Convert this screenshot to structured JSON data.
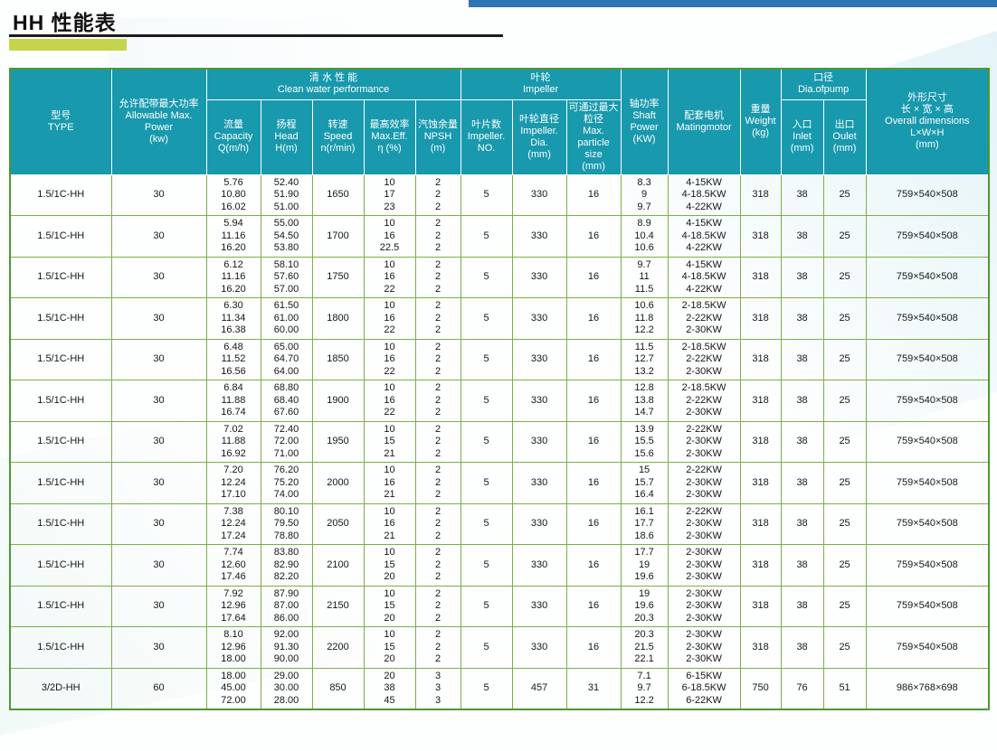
{
  "page": {
    "title": "HH 性能表"
  },
  "table": {
    "header": {
      "type": "型号\nTYPE",
      "power": "允许配带最大功率\nAllowable Max.\nPower\n(kw)",
      "clean_water": "清  水  性  能\nClean water performance",
      "capacity": "流量\nCapacity\nQ(m/h)",
      "head": "扬程\nHead\nH(m)",
      "speed": "转速\nSpeed\nn(r/min)",
      "max_eff": "最高效率\nMax.Eff.\nη (%)",
      "npsh": "汽蚀余量\nNPSH\n(m)",
      "impeller": "叶轮\nImpeller",
      "impeller_no": "叶片数\nImpeller.\nNO.",
      "impeller_dia": "叶轮直径\nImpeller.\nDia.\n(mm)",
      "particle": "可通过最大\n粒径\nMax.\nparticle\nsize\n(mm)",
      "shaft": "轴功率\nShaft\nPower\n(KW)",
      "motor": "配套电机\nMatingmotor",
      "weight": "重量\nWeight\n(kg)",
      "dia_group": "口径\nDia.ofpump",
      "inlet": "入口\nInlet\n(mm)",
      "outlet": "出口\nOulet\n(mm)",
      "dims": "外形尺寸\n长 × 宽 × 高\nOverall dimensions\nL×W×H\n(mm)"
    },
    "columns": [
      "type",
      "power",
      "capacity",
      "head",
      "speed",
      "eff",
      "npsh",
      "impeller_no",
      "impeller_dia",
      "particle",
      "shaft",
      "motor",
      "weight",
      "inlet",
      "outlet",
      "dims"
    ],
    "rows": [
      {
        "type": "1.5/1C-HH",
        "power": "30",
        "capacity": "5.76\n10.80\n16.02",
        "head": "52.40\n51.90\n51.00",
        "speed": "1650",
        "eff": "10\n17\n23",
        "npsh": "2\n2\n2",
        "impeller_no": "5",
        "impeller_dia": "330",
        "particle": "16",
        "shaft": "8.3\n9\n9.7",
        "motor": "4-15KW\n4-18.5KW\n4-22KW",
        "weight": "318",
        "inlet": "38",
        "outlet": "25",
        "dims": "759×540×508"
      },
      {
        "type": "1.5/1C-HH",
        "power": "30",
        "capacity": "5.94\n11.16\n16.20",
        "head": "55.00\n54.50\n53.80",
        "speed": "1700",
        "eff": "10\n16\n22.5",
        "npsh": "2\n2\n2",
        "impeller_no": "5",
        "impeller_dia": "330",
        "particle": "16",
        "shaft": "8.9\n10.4\n10.6",
        "motor": "4-15KW\n4-18.5KW\n4-22KW",
        "weight": "318",
        "inlet": "38",
        "outlet": "25",
        "dims": "759×540×508"
      },
      {
        "type": "1.5/1C-HH",
        "power": "30",
        "capacity": "6.12\n11.16\n16.20",
        "head": "58.10\n57.60\n57.00",
        "speed": "1750",
        "eff": "10\n16\n22",
        "npsh": "2\n2\n2",
        "impeller_no": "5",
        "impeller_dia": "330",
        "particle": "16",
        "shaft": "9.7\n11\n11.5",
        "motor": "4-15KW\n4-18.5KW\n4-22KW",
        "weight": "318",
        "inlet": "38",
        "outlet": "25",
        "dims": "759×540×508"
      },
      {
        "type": "1.5/1C-HH",
        "power": "30",
        "capacity": "6.30\n11.34\n16.38",
        "head": "61.50\n61.00\n60.00",
        "speed": "1800",
        "eff": "10\n16\n22",
        "npsh": "2\n2\n2",
        "impeller_no": "5",
        "impeller_dia": "330",
        "particle": "16",
        "shaft": "10.6\n11.8\n12.2",
        "motor": "2-18.5KW\n2-22KW\n2-30KW",
        "weight": "318",
        "inlet": "38",
        "outlet": "25",
        "dims": "759×540×508"
      },
      {
        "type": "1.5/1C-HH",
        "power": "30",
        "capacity": "6.48\n11.52\n16.56",
        "head": "65.00\n64.70\n64.00",
        "speed": "1850",
        "eff": "10\n16\n22",
        "npsh": "2\n2\n2",
        "impeller_no": "5",
        "impeller_dia": "330",
        "particle": "16",
        "shaft": "11.5\n12.7\n13.2",
        "motor": "2-18.5KW\n2-22KW\n2-30KW",
        "weight": "318",
        "inlet": "38",
        "outlet": "25",
        "dims": "759×540×508"
      },
      {
        "type": "1.5/1C-HH",
        "power": "30",
        "capacity": "6.84\n11.88\n16.74",
        "head": "68.80\n68.40\n67.60",
        "speed": "1900",
        "eff": "10\n16\n22",
        "npsh": "2\n2\n2",
        "impeller_no": "5",
        "impeller_dia": "330",
        "particle": "16",
        "shaft": "12.8\n13.8\n14.7",
        "motor": "2-18.5KW\n2-22KW\n2-30KW",
        "weight": "318",
        "inlet": "38",
        "outlet": "25",
        "dims": "759×540×508"
      },
      {
        "type": "1.5/1C-HH",
        "power": "30",
        "capacity": "7.02\n11.88\n16.92",
        "head": "72.40\n72.00\n71.00",
        "speed": "1950",
        "eff": "10\n15\n21",
        "npsh": "2\n2\n2",
        "impeller_no": "5",
        "impeller_dia": "330",
        "particle": "16",
        "shaft": "13.9\n15.5\n15.6",
        "motor": "2-22KW\n2-30KW\n2-30KW",
        "weight": "318",
        "inlet": "38",
        "outlet": "25",
        "dims": "759×540×508"
      },
      {
        "type": "1.5/1C-HH",
        "power": "30",
        "capacity": "7.20\n12.24\n17.10",
        "head": "76.20\n75.20\n74.00",
        "speed": "2000",
        "eff": "10\n16\n21",
        "npsh": "2\n2\n2",
        "impeller_no": "5",
        "impeller_dia": "330",
        "particle": "16",
        "shaft": "15\n15.7\n16.4",
        "motor": "2-22KW\n2-30KW\n2-30KW",
        "weight": "318",
        "inlet": "38",
        "outlet": "25",
        "dims": "759×540×508"
      },
      {
        "type": "1.5/1C-HH",
        "power": "30",
        "capacity": "7.38\n12.24\n17.24",
        "head": "80.10\n79.50\n78.80",
        "speed": "2050",
        "eff": "10\n16\n21",
        "npsh": "2\n2\n2",
        "impeller_no": "5",
        "impeller_dia": "330",
        "particle": "16",
        "shaft": "16.1\n17.7\n18.6",
        "motor": "2-22KW\n2-30KW\n2-30KW",
        "weight": "318",
        "inlet": "38",
        "outlet": "25",
        "dims": "759×540×508"
      },
      {
        "type": "1.5/1C-HH",
        "power": "30",
        "capacity": "7.74\n12.60\n17.46",
        "head": "83.80\n82.90\n82.20",
        "speed": "2100",
        "eff": "10\n15\n20",
        "npsh": "2\n2\n2",
        "impeller_no": "5",
        "impeller_dia": "330",
        "particle": "16",
        "shaft": "17.7\n19\n19.6",
        "motor": "2-30KW\n2-30KW\n2-30KW",
        "weight": "318",
        "inlet": "38",
        "outlet": "25",
        "dims": "759×540×508"
      },
      {
        "type": "1.5/1C-HH",
        "power": "30",
        "capacity": "7.92\n12.96\n17.64",
        "head": "87.90\n87.00\n86.00",
        "speed": "2150",
        "eff": "10\n15\n20",
        "npsh": "2\n2\n2",
        "impeller_no": "5",
        "impeller_dia": "330",
        "particle": "16",
        "shaft": "19\n19.6\n20.3",
        "motor": "2-30KW\n2-30KW\n2-30KW",
        "weight": "318",
        "inlet": "38",
        "outlet": "25",
        "dims": "759×540×508"
      },
      {
        "type": "1.5/1C-HH",
        "power": "30",
        "capacity": "8.10\n12.96\n18.00",
        "head": "92.00\n91.30\n90.00",
        "speed": "2200",
        "eff": "10\n15\n20",
        "npsh": "2\n2\n2",
        "impeller_no": "5",
        "impeller_dia": "330",
        "particle": "16",
        "shaft": "20.3\n21.5\n22.1",
        "motor": "2-30KW\n2-30KW\n2-30KW",
        "weight": "318",
        "inlet": "38",
        "outlet": "25",
        "dims": "759×540×508"
      },
      {
        "type": "3/2D-HH",
        "power": "60",
        "capacity": "18.00\n45.00\n72.00",
        "head": "29.00\n30.00\n28.00",
        "speed": "850",
        "eff": "20\n38\n45",
        "npsh": "3\n3\n3",
        "impeller_no": "5",
        "impeller_dia": "457",
        "particle": "31",
        "shaft": "7.1\n9.7\n12.2",
        "motor": "6-15KW\n6-18.5KW\n6-22KW",
        "weight": "750",
        "inlet": "76",
        "outlet": "51",
        "dims": "986×768×698"
      }
    ]
  }
}
